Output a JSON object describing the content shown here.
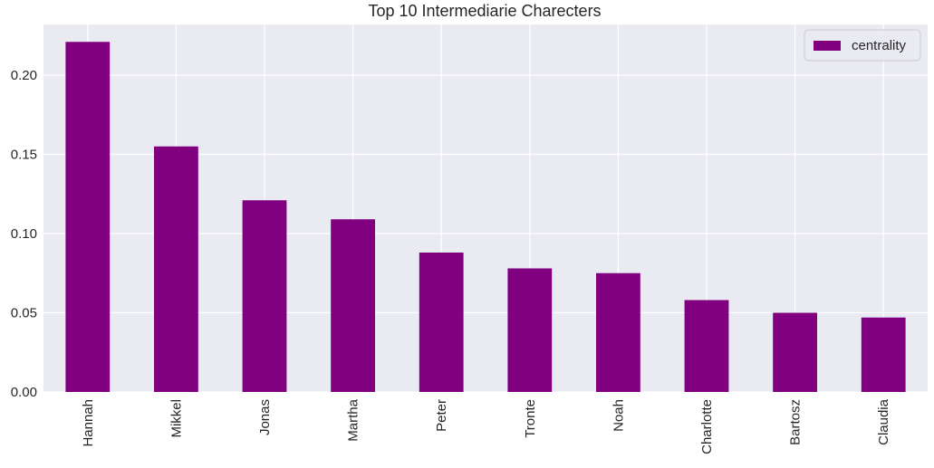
{
  "chart_data": {
    "type": "bar",
    "title": "Top 10 Intermediarie Charecters",
    "xlabel": "",
    "ylabel": "",
    "categories": [
      "Hannah",
      "Mikkel",
      "Jonas",
      "Martha",
      "Peter",
      "Tronte",
      "Noah",
      "Charlotte",
      "Bartosz",
      "Claudia"
    ],
    "series": [
      {
        "name": "centrality",
        "values": [
          0.221,
          0.155,
          0.121,
          0.109,
          0.088,
          0.078,
          0.075,
          0.058,
          0.05,
          0.047
        ],
        "color": "#800080"
      }
    ],
    "ylim": [
      0,
      0.232
    ],
    "yticks": [
      0.0,
      0.05,
      0.1,
      0.15,
      0.2
    ],
    "ytick_labels": [
      "0.00",
      "0.05",
      "0.10",
      "0.15",
      "0.20"
    ],
    "grid": true,
    "legend_position": "top-right",
    "plot_background": "#eaeaf2",
    "grid_color": "#ffffff",
    "xtick_rotation_degrees": -90
  }
}
